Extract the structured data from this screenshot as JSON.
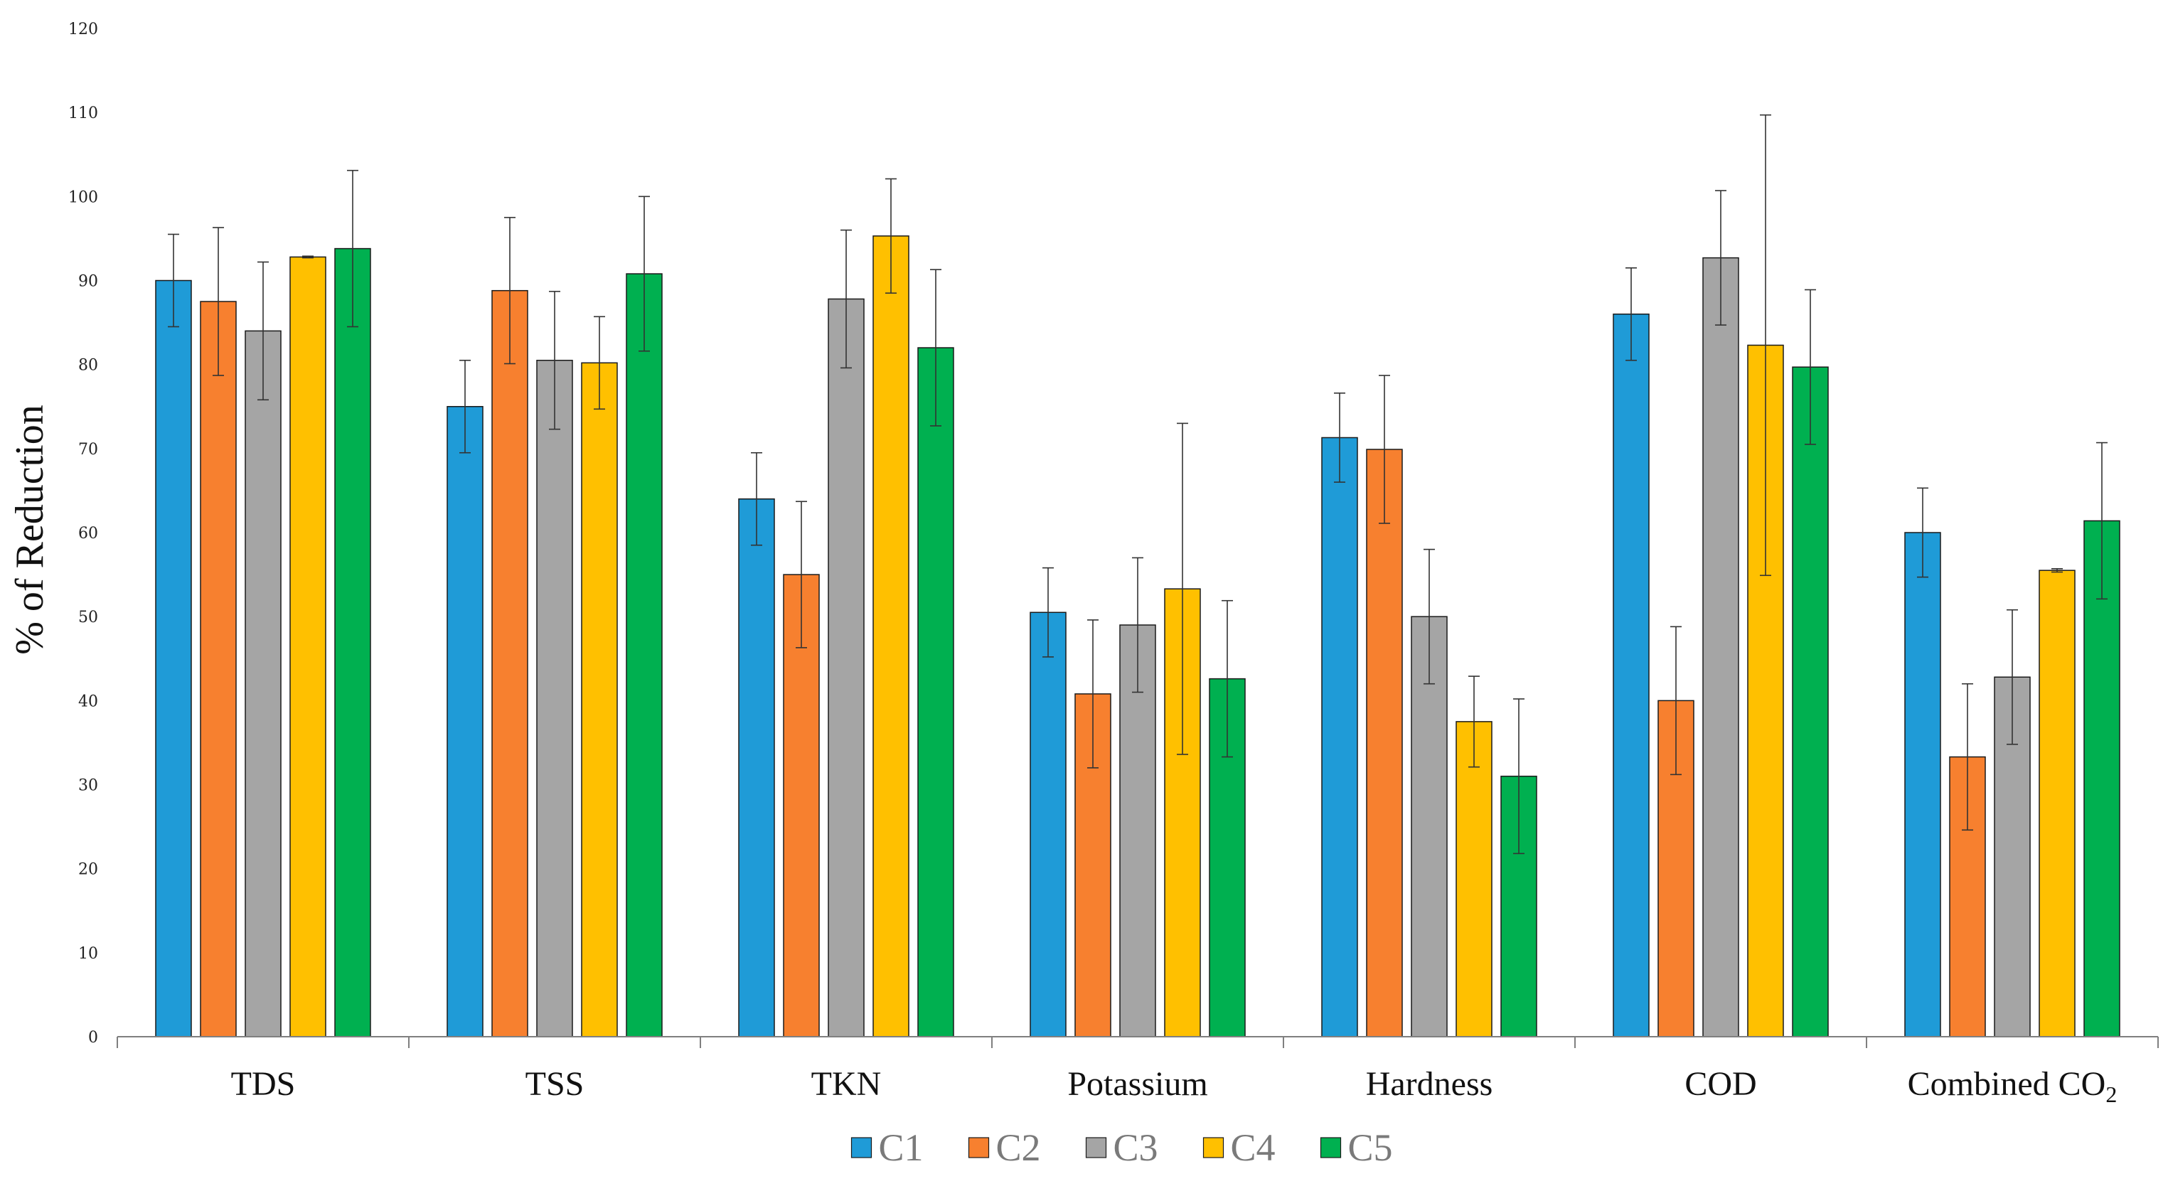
{
  "chart_data": {
    "type": "bar",
    "title": "",
    "xlabel": "",
    "ylabel": "% of Reduction",
    "ylim": [
      0,
      120
    ],
    "ytick_step": 10,
    "grid": false,
    "legend_position": "bottom-center",
    "categories": [
      {
        "main": "TDS",
        "sub": ""
      },
      {
        "main": "TSS",
        "sub": ""
      },
      {
        "main": "TKN",
        "sub": ""
      },
      {
        "main": "Potassium",
        "sub": ""
      },
      {
        "main": "Hardness",
        "sub": ""
      },
      {
        "main": "COD",
        "sub": ""
      },
      {
        "main": "Combined CO",
        "sub": "2"
      }
    ],
    "series": [
      {
        "name": "C1",
        "color": "#1f9bd7",
        "values": [
          90,
          75,
          64,
          50.5,
          71.3,
          86,
          60
        ],
        "errors": [
          5.5,
          5.5,
          5.5,
          5.3,
          5.3,
          5.5,
          5.3
        ]
      },
      {
        "name": "C2",
        "color": "#f7802f",
        "values": [
          87.5,
          88.8,
          55,
          40.8,
          69.9,
          40,
          33.3
        ],
        "errors": [
          8.8,
          8.7,
          8.7,
          8.8,
          8.8,
          8.8,
          8.7
        ]
      },
      {
        "name": "C3",
        "color": "#a5a5a5",
        "values": [
          84,
          80.5,
          87.8,
          49,
          50,
          92.7,
          42.8
        ],
        "errors": [
          8.2,
          8.2,
          8.2,
          8.0,
          8.0,
          8.0,
          8.0
        ]
      },
      {
        "name": "C4",
        "color": "#ffc000",
        "values": [
          92.8,
          80.2,
          95.3,
          53.3,
          37.5,
          82.3,
          55.5
        ],
        "errors": [
          0.1,
          5.5,
          6.8,
          19.7,
          5.4,
          27.4,
          0.2
        ]
      },
      {
        "name": "C5",
        "color": "#00b050",
        "values": [
          93.8,
          90.8,
          82,
          42.6,
          31,
          79.7,
          61.4
        ],
        "errors": [
          9.3,
          9.2,
          9.3,
          9.3,
          9.2,
          9.2,
          9.3
        ]
      }
    ]
  }
}
